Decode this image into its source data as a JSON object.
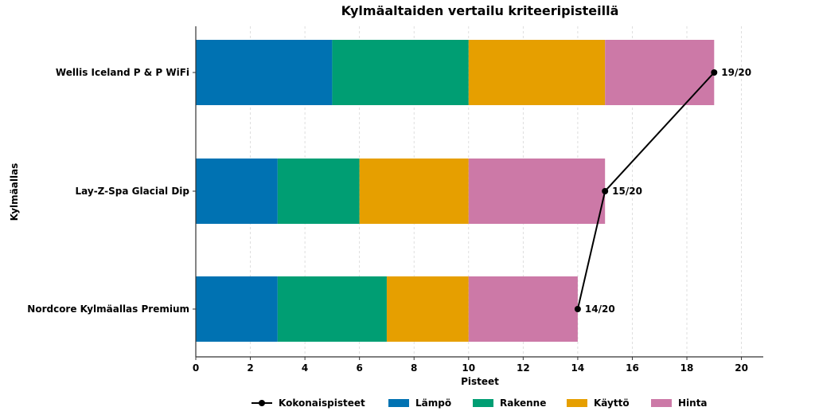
{
  "chart_data": {
    "type": "bar",
    "orientation": "horizontal",
    "stacked": true,
    "title": "Kylmäaltaiden vertailu kriteeripisteillä",
    "xlabel": "Pisteet",
    "ylabel": "Kylmäallas",
    "xlim": [
      0,
      20.8
    ],
    "xticks": [
      0,
      2,
      4,
      6,
      8,
      10,
      12,
      14,
      16,
      18,
      20
    ],
    "grid": "vertical dashed",
    "legend_position": "bottom-center",
    "categories": [
      "Nordcore Kylmäallas Premium",
      "Lay-Z-Spa Glacial Dip",
      "Wellis Iceland P & P WiFi"
    ],
    "series": [
      {
        "name": "Lämpö",
        "color": "#0072b2",
        "values": [
          3,
          3,
          5
        ]
      },
      {
        "name": "Rakenne",
        "color": "#009e73",
        "values": [
          4,
          3,
          5
        ]
      },
      {
        "name": "Käyttö",
        "color": "#e69f00",
        "values": [
          3,
          4,
          5
        ]
      },
      {
        "name": "Hinta",
        "color": "#cc79a7",
        "values": [
          4,
          5,
          4
        ]
      }
    ],
    "line_series": {
      "name": "Kokonaispisteet",
      "color": "#000000",
      "values": [
        14,
        15,
        19
      ],
      "labels": [
        "14/20",
        "15/20",
        "19/20"
      ]
    }
  }
}
